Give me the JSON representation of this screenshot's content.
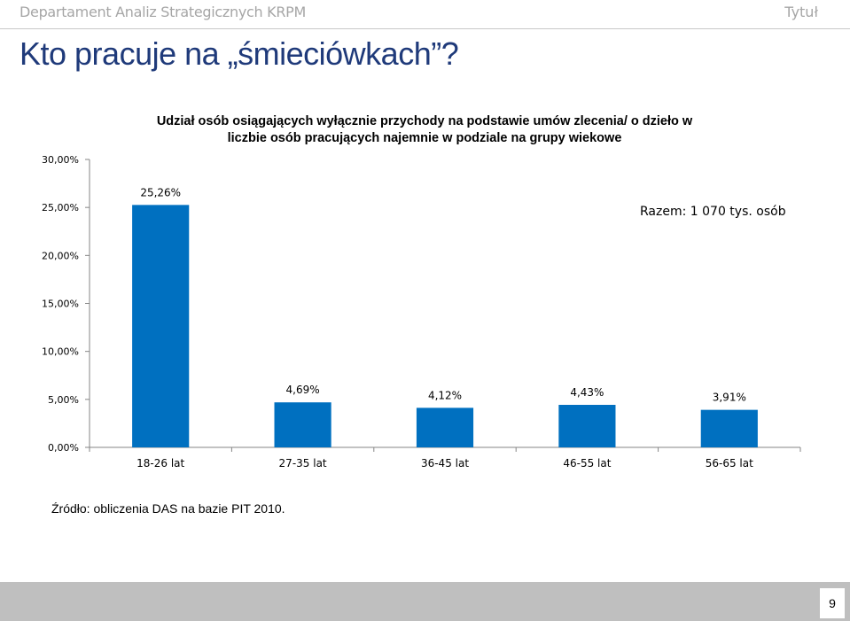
{
  "header": {
    "department": "Departament Analiz Strategicznych KRPM",
    "tag": "Tytuł"
  },
  "slide": {
    "title": "Kto pracuje na „śmieciówkach”?",
    "source": "Źródło: obliczenia DAS na bazie PIT 2010.",
    "page_number": "9"
  },
  "chart_data": {
    "type": "bar",
    "title_lines": [
      "Udział osób osiągających wyłącznie przychody na podstawie umów zlecenia/ o dzieło w",
      "liczbie osób pracujących najemnie w podziale na grupy wiekowe"
    ],
    "annotation": "Razem: 1 070 tys. osób",
    "categories": [
      "18-26 lat",
      "27-35 lat",
      "36-45 lat",
      "46-55 lat",
      "56-65 lat"
    ],
    "values": [
      25.26,
      4.69,
      4.12,
      4.43,
      3.91
    ],
    "value_labels": [
      "25,26%",
      "4,69%",
      "4,12%",
      "4,43%",
      "3,91%"
    ],
    "yticks": [
      0,
      5,
      10,
      15,
      20,
      25,
      30
    ],
    "ytick_labels": [
      "0,00%",
      "5,00%",
      "10,00%",
      "15,00%",
      "20,00%",
      "25,00%",
      "30,00%"
    ],
    "ylim": [
      0,
      30
    ],
    "grid": false,
    "bar_color": "#0070c0"
  }
}
